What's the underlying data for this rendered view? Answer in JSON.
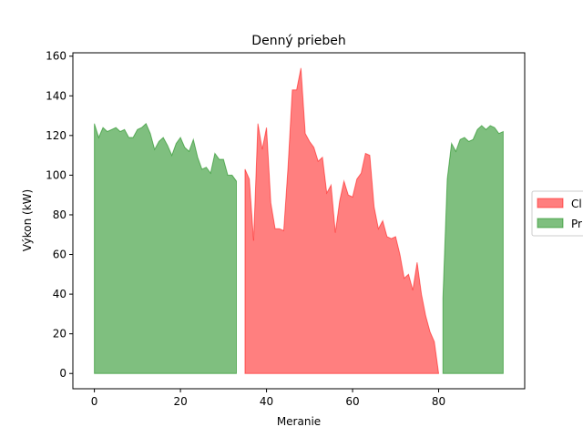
{
  "chart_data": {
    "type": "area",
    "title": "Denný priebeh",
    "xlabel": "Meranie",
    "ylabel": "Výkon (kW)",
    "xlim": [
      -5,
      100
    ],
    "ylim": [
      -7.7,
      161.7
    ],
    "xticks": [
      0,
      20,
      40,
      60,
      80
    ],
    "yticks": [
      0,
      20,
      40,
      60,
      80,
      100,
      120,
      140,
      160
    ],
    "legend_position": "right, clipped at figure edge",
    "grid": false,
    "series": [
      {
        "name": "Cl",
        "color": "#ff0000",
        "alpha": 0.5,
        "x": [
          35,
          36,
          37,
          38,
          39,
          40,
          41,
          42,
          43,
          44,
          45,
          46,
          47,
          48,
          49,
          50,
          51,
          52,
          53,
          54,
          55,
          56,
          57,
          58,
          59,
          60,
          61,
          62,
          63,
          64,
          65,
          66,
          67,
          68,
          69,
          70,
          71,
          72,
          73,
          74,
          75,
          76,
          77,
          78,
          79,
          80
        ],
        "y": [
          103,
          98,
          67,
          126,
          113,
          124,
          86,
          73,
          73,
          72,
          104,
          143,
          143,
          154,
          121,
          117,
          114,
          107,
          109,
          91,
          95,
          71,
          87,
          97,
          90,
          89,
          98,
          101,
          111,
          110,
          84,
          73,
          77,
          69,
          68,
          69,
          60,
          48,
          50,
          42,
          56,
          40,
          29,
          21,
          16,
          0
        ]
      },
      {
        "name": "Pr",
        "color": "#008000",
        "alpha": 0.5,
        "segments": [
          {
            "x": [
              0,
              1,
              2,
              3,
              4,
              5,
              6,
              7,
              8,
              9,
              10,
              11,
              12,
              13,
              14,
              15,
              16,
              17,
              18,
              19,
              20,
              21,
              22,
              23,
              24,
              25,
              26,
              27,
              28,
              29,
              30,
              31,
              32,
              33
            ],
            "y": [
              126,
              119,
              124,
              122,
              123,
              124,
              122,
              123,
              119,
              119,
              123,
              124,
              126,
              121,
              113,
              117,
              119,
              115,
              110,
              116,
              119,
              114,
              112,
              118,
              109,
              103,
              104,
              101,
              111,
              108,
              108,
              100,
              100,
              97
            ]
          },
          {
            "x": [
              81,
              82,
              83,
              84,
              85,
              86,
              87,
              88,
              89,
              90,
              91,
              92,
              93,
              94,
              95
            ],
            "y": [
              38,
              98,
              116,
              112,
              118,
              119,
              117,
              118,
              123,
              125,
              123,
              125,
              124,
              121,
              122
            ]
          }
        ]
      }
    ]
  }
}
